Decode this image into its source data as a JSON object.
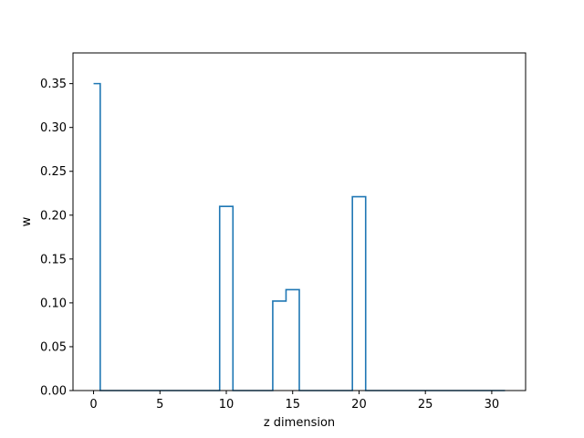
{
  "chart_data": {
    "type": "line",
    "step": "mid",
    "xlabel": "z dimension",
    "ylabel": "w",
    "xlim": [
      -1.55,
      32.55
    ],
    "ylim": [
      0.0,
      0.385
    ],
    "xticks": [
      0,
      5,
      10,
      15,
      20,
      25,
      30
    ],
    "xtick_labels": [
      "0",
      "5",
      "10",
      "15",
      "20",
      "25",
      "30"
    ],
    "yticks": [
      0.0,
      0.05,
      0.1,
      0.15,
      0.2,
      0.25,
      0.3,
      0.35
    ],
    "ytick_labels": [
      "0.00",
      "0.05",
      "0.10",
      "0.15",
      "0.20",
      "0.25",
      "0.30",
      "0.35"
    ],
    "line_color": "#1f77b4",
    "series": [
      {
        "x": [
          0,
          1,
          2,
          3,
          4,
          5,
          6,
          7,
          8,
          9,
          10,
          11,
          12,
          13,
          14,
          15,
          16,
          17,
          18,
          19,
          20,
          21,
          22,
          23,
          24,
          25,
          26,
          27,
          28,
          29,
          30,
          31
        ],
        "values": [
          0.35,
          0,
          0,
          0,
          0,
          0,
          0,
          0,
          0,
          0,
          0.21,
          0,
          0,
          0,
          0.102,
          0.115,
          0,
          0,
          0,
          0,
          0.221,
          0,
          0,
          0,
          0,
          0,
          0,
          0,
          0,
          0,
          0,
          0
        ]
      }
    ]
  }
}
